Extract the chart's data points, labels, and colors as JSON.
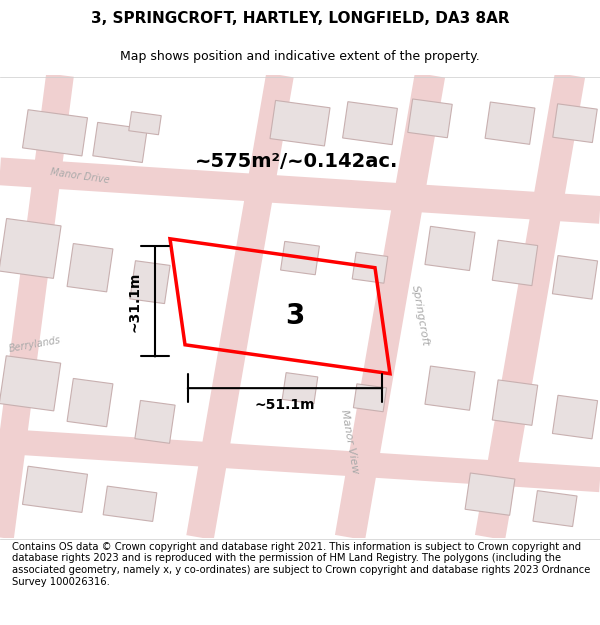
{
  "title": "3, SPRINGCROFT, HARTLEY, LONGFIELD, DA3 8AR",
  "subtitle": "Map shows position and indicative extent of the property.",
  "footer": "Contains OS data © Crown copyright and database right 2021. This information is subject to Crown copyright and database rights 2023 and is reproduced with the permission of HM Land Registry. The polygons (including the associated geometry, namely x, y co-ordinates) are subject to Crown copyright and database rights 2023 Ordnance Survey 100026316.",
  "bg_color": "#f5f0f0",
  "map_bg": "#ffffff",
  "area_text": "~575m²/~0.142ac.",
  "width_text": "~51.1m",
  "height_text": "~31.1m",
  "plot_number": "3",
  "map_region": [
    0,
    0.13,
    1.0,
    0.82
  ],
  "title_fontsize": 11,
  "subtitle_fontsize": 9,
  "footer_fontsize": 7.2,
  "road_color": "#e8a0a0",
  "building_fill": "#e8e0e0",
  "building_edge": "#c8b0b0",
  "highlight_color": "#ff0000",
  "dim_color": "#000000",
  "street_label_color": "#999999"
}
